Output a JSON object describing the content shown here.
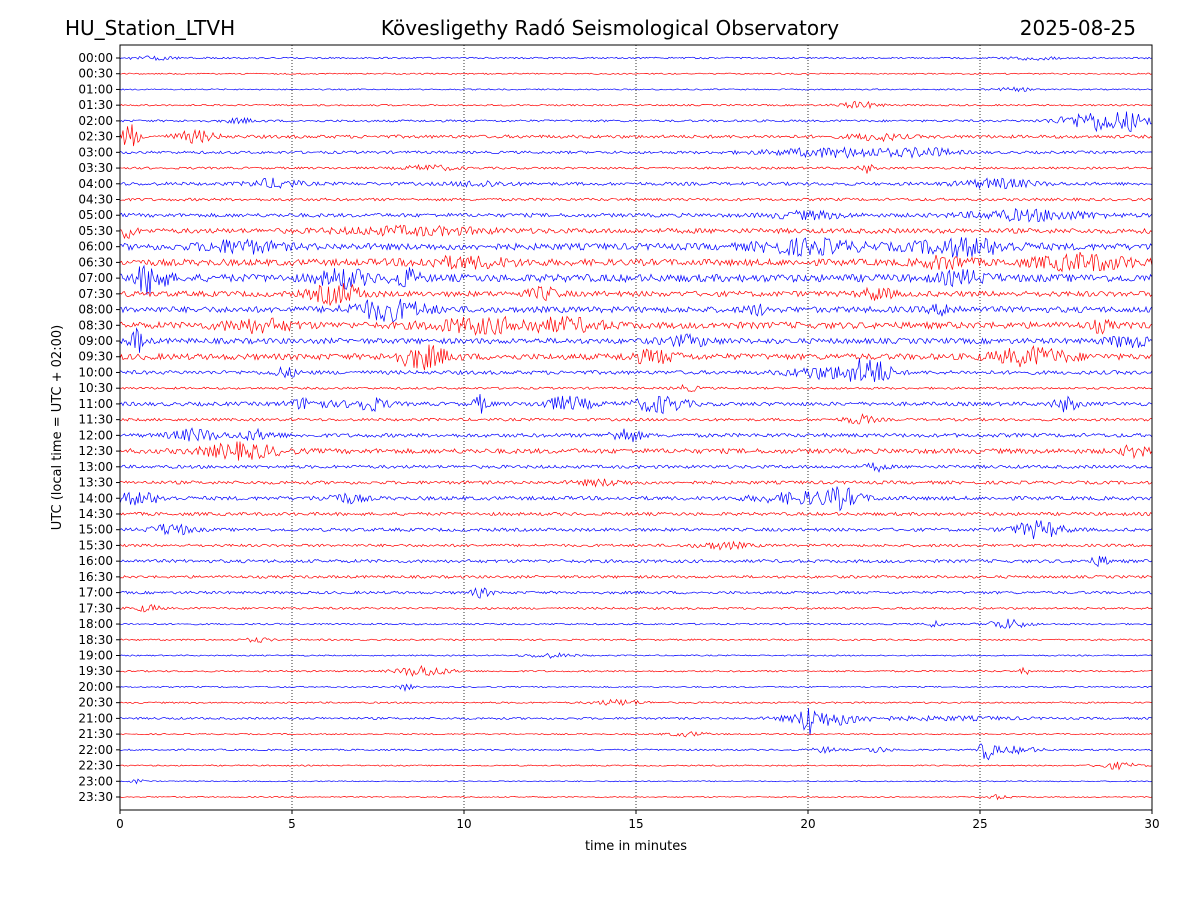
{
  "header": {
    "station": "HU_Station_LTVH",
    "observatory": "Kövesligethy Radó Seismological Observatory",
    "date": "2025-08-25"
  },
  "chart_data": {
    "type": "line",
    "chart_kind": "helicorder",
    "xlabel": "time in minutes",
    "ylabel": "UTC (local time = UTC + 02:00)",
    "xlim": [
      0,
      30
    ],
    "x_ticks": [
      "0",
      "5",
      "10",
      "15",
      "20",
      "25",
      "30"
    ],
    "vertical_grid": "dotted",
    "trace_colors": [
      "#0000ff",
      "#ff0000"
    ],
    "rows": [
      {
        "label": "00:00",
        "noise": 0.15,
        "bursts": [
          [
            1.0,
            1.0,
            0.3
          ],
          [
            26.5,
            1.0,
            0.3
          ]
        ]
      },
      {
        "label": "00:30",
        "noise": 0.12,
        "bursts": []
      },
      {
        "label": "01:00",
        "noise": 0.12,
        "bursts": [
          [
            26.0,
            0.8,
            0.3
          ]
        ]
      },
      {
        "label": "01:30",
        "noise": 0.15,
        "bursts": [
          [
            21.5,
            0.8,
            0.6
          ]
        ]
      },
      {
        "label": "02:00",
        "noise": 0.2,
        "bursts": [
          [
            3.5,
            0.6,
            0.4
          ],
          [
            28.5,
            1.5,
            1.8
          ],
          [
            29.5,
            0.5,
            1.0
          ]
        ]
      },
      {
        "label": "02:30",
        "noise": 0.3,
        "bursts": [
          [
            0.3,
            0.3,
            2.5
          ],
          [
            2.2,
            0.8,
            1.0
          ],
          [
            22.0,
            1.0,
            0.6
          ]
        ]
      },
      {
        "label": "03:00",
        "noise": 0.25,
        "bursts": [
          [
            21.0,
            3.0,
            0.8
          ],
          [
            23.5,
            1.0,
            0.6
          ]
        ]
      },
      {
        "label": "03:30",
        "noise": 0.2,
        "bursts": [
          [
            9.0,
            1.0,
            0.5
          ],
          [
            21.7,
            0.3,
            0.8
          ]
        ]
      },
      {
        "label": "04:00",
        "noise": 0.3,
        "bursts": [
          [
            4.5,
            1.0,
            0.8
          ],
          [
            10.5,
            1.0,
            0.5
          ],
          [
            25.5,
            1.5,
            0.8
          ]
        ]
      },
      {
        "label": "04:30",
        "noise": 0.25,
        "bursts": []
      },
      {
        "label": "05:00",
        "noise": 0.35,
        "bursts": [
          [
            20.0,
            1.5,
            0.6
          ],
          [
            26.5,
            2.5,
            0.9
          ]
        ]
      },
      {
        "label": "05:30",
        "noise": 0.45,
        "bursts": [
          [
            0.2,
            0.3,
            1.5
          ],
          [
            8.5,
            3.0,
            0.6
          ]
        ]
      },
      {
        "label": "06:00",
        "noise": 0.6,
        "bursts": [
          [
            3.5,
            1.5,
            1.0
          ],
          [
            20.0,
            2.0,
            1.2
          ],
          [
            24.5,
            2.0,
            1.4
          ]
        ]
      },
      {
        "label": "06:30",
        "noise": 0.6,
        "bursts": [
          [
            10.0,
            2.0,
            0.8
          ],
          [
            24.0,
            1.0,
            1.0
          ],
          [
            28.0,
            2.0,
            1.3
          ]
        ]
      },
      {
        "label": "07:00",
        "noise": 0.7,
        "bursts": [
          [
            0.9,
            0.6,
            2.8
          ],
          [
            6.5,
            1.0,
            1.5
          ],
          [
            8.3,
            0.5,
            1.5
          ],
          [
            24.5,
            1.0,
            1.0
          ]
        ]
      },
      {
        "label": "07:30",
        "noise": 0.5,
        "bursts": [
          [
            6.3,
            1.0,
            1.8
          ],
          [
            12.3,
            0.6,
            1.0
          ],
          [
            22.0,
            0.6,
            1.0
          ]
        ]
      },
      {
        "label": "08:00",
        "noise": 0.55,
        "bursts": [
          [
            7.8,
            1.5,
            1.8
          ],
          [
            18.5,
            0.4,
            0.8
          ],
          [
            24.0,
            0.6,
            0.8
          ]
        ]
      },
      {
        "label": "08:30",
        "noise": 0.6,
        "bursts": [
          [
            4.0,
            1.5,
            1.0
          ],
          [
            10.5,
            2.0,
            1.2
          ],
          [
            13.0,
            1.5,
            1.0
          ],
          [
            28.5,
            0.4,
            1.0
          ]
        ]
      },
      {
        "label": "09:00",
        "noise": 0.5,
        "bursts": [
          [
            0.5,
            0.3,
            2.0
          ],
          [
            16.5,
            1.0,
            0.8
          ],
          [
            29.3,
            0.8,
            1.0
          ]
        ]
      },
      {
        "label": "09:30",
        "noise": 0.55,
        "bursts": [
          [
            8.8,
            1.0,
            2.0
          ],
          [
            15.5,
            1.0,
            1.0
          ],
          [
            26.5,
            1.5,
            1.5
          ]
        ]
      },
      {
        "label": "10:00",
        "noise": 0.35,
        "bursts": [
          [
            4.8,
            0.5,
            0.8
          ],
          [
            20.5,
            1.5,
            1.0
          ],
          [
            21.8,
            0.8,
            2.5
          ]
        ]
      },
      {
        "label": "10:30",
        "noise": 0.2,
        "bursts": [
          [
            16.5,
            0.5,
            0.5
          ]
        ]
      },
      {
        "label": "11:00",
        "noise": 0.35,
        "bursts": [
          [
            5.5,
            0.8,
            1.0
          ],
          [
            7.2,
            0.8,
            1.2
          ],
          [
            10.5,
            0.3,
            1.5
          ],
          [
            13.0,
            1.0,
            1.2
          ],
          [
            15.7,
            1.0,
            1.5
          ],
          [
            27.5,
            0.5,
            1.2
          ]
        ]
      },
      {
        "label": "11:30",
        "noise": 0.25,
        "bursts": [
          [
            21.5,
            0.6,
            0.8
          ]
        ]
      },
      {
        "label": "12:00",
        "noise": 0.35,
        "bursts": [
          [
            2.2,
            1.0,
            1.0
          ],
          [
            4.0,
            0.8,
            0.8
          ],
          [
            14.7,
            0.6,
            1.2
          ]
        ]
      },
      {
        "label": "12:30",
        "noise": 0.45,
        "bursts": [
          [
            3.5,
            1.5,
            1.3
          ],
          [
            29.5,
            0.5,
            1.0
          ]
        ]
      },
      {
        "label": "13:00",
        "noise": 0.3,
        "bursts": [
          [
            22.0,
            0.4,
            0.7
          ]
        ]
      },
      {
        "label": "13:30",
        "noise": 0.3,
        "bursts": [
          [
            14.0,
            1.0,
            0.5
          ]
        ]
      },
      {
        "label": "14:00",
        "noise": 0.35,
        "bursts": [
          [
            0.5,
            1.0,
            1.0
          ],
          [
            6.5,
            0.8,
            0.8
          ],
          [
            20.0,
            2.0,
            1.0
          ],
          [
            21.0,
            0.6,
            1.3
          ]
        ]
      },
      {
        "label": "14:30",
        "noise": 0.3,
        "bursts": []
      },
      {
        "label": "15:00",
        "noise": 0.3,
        "bursts": [
          [
            1.5,
            0.8,
            1.0
          ],
          [
            26.7,
            1.0,
            1.5
          ]
        ]
      },
      {
        "label": "15:30",
        "noise": 0.25,
        "bursts": [
          [
            17.5,
            1.0,
            0.6
          ]
        ]
      },
      {
        "label": "16:00",
        "noise": 0.3,
        "bursts": [
          [
            28.5,
            0.4,
            0.8
          ]
        ]
      },
      {
        "label": "16:30",
        "noise": 0.25,
        "bursts": []
      },
      {
        "label": "17:00",
        "noise": 0.25,
        "bursts": [
          [
            10.5,
            0.4,
            0.8
          ]
        ]
      },
      {
        "label": "17:30",
        "noise": 0.2,
        "bursts": [
          [
            0.8,
            0.5,
            0.6
          ]
        ]
      },
      {
        "label": "18:00",
        "noise": 0.15,
        "bursts": [
          [
            23.7,
            0.3,
            0.6
          ],
          [
            25.8,
            0.8,
            0.9
          ]
        ]
      },
      {
        "label": "18:30",
        "noise": 0.15,
        "bursts": [
          [
            4.0,
            0.5,
            0.4
          ]
        ]
      },
      {
        "label": "19:00",
        "noise": 0.12,
        "bursts": [
          [
            12.5,
            1.0,
            0.4
          ]
        ]
      },
      {
        "label": "19:30",
        "noise": 0.15,
        "bursts": [
          [
            8.8,
            1.0,
            1.0
          ],
          [
            26.3,
            0.2,
            0.6
          ]
        ]
      },
      {
        "label": "20:00",
        "noise": 0.12,
        "bursts": [
          [
            8.3,
            0.3,
            0.6
          ]
        ]
      },
      {
        "label": "20:30",
        "noise": 0.15,
        "bursts": [
          [
            14.5,
            1.0,
            0.5
          ]
        ]
      },
      {
        "label": "21:00",
        "noise": 0.2,
        "bursts": [
          [
            20.0,
            0.2,
            3.0
          ],
          [
            20.5,
            1.5,
            1.3
          ],
          [
            24.0,
            3.0,
            0.3
          ]
        ]
      },
      {
        "label": "21:30",
        "noise": 0.12,
        "bursts": [
          [
            16.5,
            0.8,
            0.4
          ]
        ]
      },
      {
        "label": "22:00",
        "noise": 0.15,
        "bursts": [
          [
            20.5,
            0.5,
            0.5
          ],
          [
            22.0,
            0.5,
            0.5
          ],
          [
            25.2,
            0.3,
            1.8
          ],
          [
            26.0,
            1.0,
            0.6
          ]
        ]
      },
      {
        "label": "22:30",
        "noise": 0.12,
        "bursts": [
          [
            29.0,
            0.8,
            0.6
          ]
        ]
      },
      {
        "label": "23:00",
        "noise": 0.1,
        "bursts": [
          [
            0.5,
            0.3,
            0.4
          ]
        ]
      },
      {
        "label": "23:30",
        "noise": 0.1,
        "bursts": [
          [
            25.5,
            0.5,
            0.4
          ]
        ]
      }
    ]
  }
}
